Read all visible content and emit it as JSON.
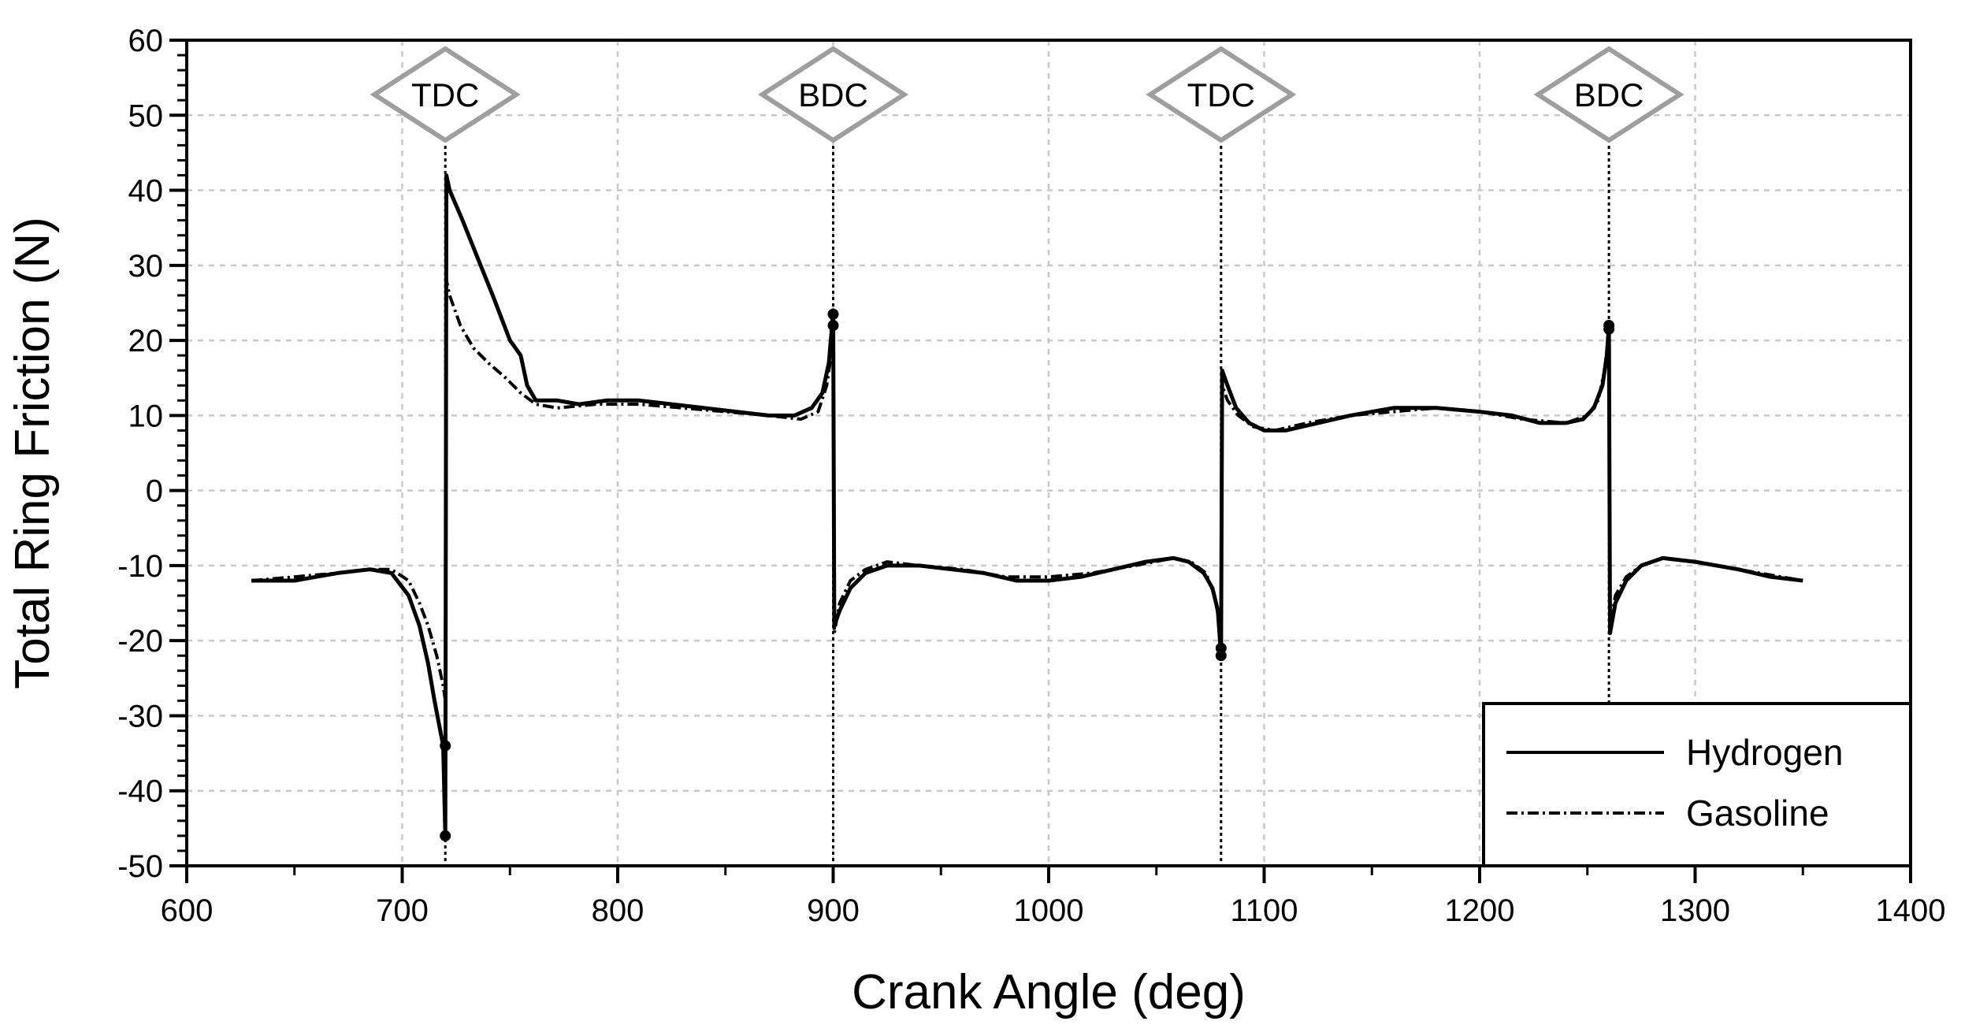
{
  "chart_data": {
    "type": "line",
    "title": "",
    "xlabel": "Crank Angle (deg)",
    "ylabel": "Total Ring Friction (N)",
    "xlim": [
      600,
      1400
    ],
    "ylim": [
      -50,
      60
    ],
    "xticks": [
      600,
      700,
      800,
      900,
      1000,
      1100,
      1200,
      1300,
      1400
    ],
    "yticks": [
      60,
      50,
      40,
      30,
      20,
      10,
      0,
      -10,
      -20,
      -30,
      -40,
      -50
    ],
    "grid": true,
    "legend_position": "bottom-right",
    "markers": [
      {
        "label": "TDC",
        "x": 720
      },
      {
        "label": "BDC",
        "x": 900
      },
      {
        "label": "TDC",
        "x": 1080
      },
      {
        "label": "BDC",
        "x": 1260
      }
    ],
    "series": [
      {
        "name": "Hydrogen",
        "style": "solid",
        "points": [
          [
            630,
            -12
          ],
          [
            650,
            -12
          ],
          [
            670,
            -11
          ],
          [
            685,
            -10.5
          ],
          [
            695,
            -11
          ],
          [
            703,
            -14
          ],
          [
            708,
            -18
          ],
          [
            712,
            -23
          ],
          [
            715,
            -28
          ],
          [
            717,
            -31
          ],
          [
            719,
            -34
          ],
          [
            720,
            -46
          ],
          [
            720.5,
            42
          ],
          [
            722,
            40
          ],
          [
            728,
            36
          ],
          [
            735,
            31
          ],
          [
            742,
            26
          ],
          [
            750,
            20
          ],
          [
            755,
            18
          ],
          [
            758,
            14
          ],
          [
            762,
            12
          ],
          [
            772,
            12
          ],
          [
            782,
            11.5
          ],
          [
            795,
            12
          ],
          [
            810,
            12
          ],
          [
            825,
            11.5
          ],
          [
            840,
            11
          ],
          [
            855,
            10.5
          ],
          [
            870,
            10
          ],
          [
            882,
            10
          ],
          [
            890,
            11
          ],
          [
            895,
            13
          ],
          [
            898,
            17
          ],
          [
            899.5,
            22
          ],
          [
            900,
            24
          ],
          [
            900.5,
            -18
          ],
          [
            903,
            -16
          ],
          [
            908,
            -13
          ],
          [
            915,
            -11
          ],
          [
            925,
            -10
          ],
          [
            940,
            -10
          ],
          [
            955,
            -10.5
          ],
          [
            970,
            -11
          ],
          [
            985,
            -12
          ],
          [
            1000,
            -12
          ],
          [
            1015,
            -11.5
          ],
          [
            1030,
            -10.5
          ],
          [
            1045,
            -9.5
          ],
          [
            1058,
            -9
          ],
          [
            1065,
            -9.5
          ],
          [
            1072,
            -11
          ],
          [
            1076,
            -13
          ],
          [
            1078.5,
            -16
          ],
          [
            1080,
            -22
          ],
          [
            1080.5,
            16
          ],
          [
            1083,
            14
          ],
          [
            1087,
            11
          ],
          [
            1093,
            9
          ],
          [
            1100,
            8
          ],
          [
            1110,
            8
          ],
          [
            1125,
            9
          ],
          [
            1140,
            10
          ],
          [
            1160,
            11
          ],
          [
            1180,
            11
          ],
          [
            1200,
            10.5
          ],
          [
            1215,
            10
          ],
          [
            1228,
            9
          ],
          [
            1240,
            9
          ],
          [
            1248,
            9.5
          ],
          [
            1253,
            11
          ],
          [
            1257,
            14
          ],
          [
            1259,
            18
          ],
          [
            1260,
            22
          ],
          [
            1260.5,
            -19
          ],
          [
            1263,
            -15
          ],
          [
            1268,
            -12
          ],
          [
            1275,
            -10
          ],
          [
            1285,
            -9
          ],
          [
            1300,
            -9.5
          ],
          [
            1320,
            -10.5
          ],
          [
            1335,
            -11.5
          ],
          [
            1350,
            -12
          ]
        ]
      },
      {
        "name": "Gasoline",
        "style": "dashdot",
        "points": [
          [
            630,
            -12
          ],
          [
            650,
            -11.5
          ],
          [
            670,
            -11
          ],
          [
            685,
            -10.5
          ],
          [
            695,
            -10.5
          ],
          [
            703,
            -12
          ],
          [
            708,
            -15
          ],
          [
            712,
            -18
          ],
          [
            716,
            -22
          ],
          [
            719,
            -26
          ],
          [
            720,
            -28
          ],
          [
            720.5,
            28
          ],
          [
            722,
            26
          ],
          [
            727,
            22
          ],
          [
            733,
            19
          ],
          [
            740,
            17
          ],
          [
            748,
            15
          ],
          [
            755,
            13
          ],
          [
            762,
            11.5
          ],
          [
            772,
            11
          ],
          [
            790,
            11.5
          ],
          [
            810,
            11.5
          ],
          [
            830,
            11
          ],
          [
            850,
            10.5
          ],
          [
            870,
            10
          ],
          [
            885,
            9.5
          ],
          [
            893,
            10.5
          ],
          [
            897,
            14
          ],
          [
            899,
            18
          ],
          [
            900,
            22
          ],
          [
            900.5,
            -19
          ],
          [
            903,
            -15
          ],
          [
            908,
            -12
          ],
          [
            915,
            -10.5
          ],
          [
            925,
            -9.5
          ],
          [
            940,
            -10
          ],
          [
            960,
            -10.5
          ],
          [
            980,
            -11.5
          ],
          [
            1000,
            -11.5
          ],
          [
            1020,
            -11
          ],
          [
            1040,
            -10
          ],
          [
            1058,
            -9
          ],
          [
            1066,
            -9.5
          ],
          [
            1073,
            -11
          ],
          [
            1077,
            -14
          ],
          [
            1079.5,
            -18
          ],
          [
            1080,
            -21
          ],
          [
            1080.5,
            14
          ],
          [
            1083,
            12
          ],
          [
            1088,
            10
          ],
          [
            1095,
            8.5
          ],
          [
            1105,
            8
          ],
          [
            1120,
            9
          ],
          [
            1140,
            10
          ],
          [
            1160,
            10.5
          ],
          [
            1180,
            11
          ],
          [
            1200,
            10.5
          ],
          [
            1220,
            9.5
          ],
          [
            1240,
            9
          ],
          [
            1250,
            10
          ],
          [
            1255,
            12
          ],
          [
            1258,
            16
          ],
          [
            1260,
            21
          ],
          [
            1260.5,
            -18
          ],
          [
            1263,
            -14
          ],
          [
            1268,
            -11.5
          ],
          [
            1275,
            -10
          ],
          [
            1285,
            -9
          ],
          [
            1300,
            -9.5
          ],
          [
            1320,
            -10.5
          ],
          [
            1340,
            -11.5
          ],
          [
            1350,
            -12
          ]
        ]
      }
    ],
    "highlight_points": [
      [
        720,
        -34
      ],
      [
        720,
        -46
      ],
      [
        900,
        22
      ],
      [
        900,
        23.5
      ],
      [
        1080,
        -21
      ],
      [
        1080,
        -22
      ],
      [
        1260,
        21.5
      ],
      [
        1260,
        22
      ]
    ]
  }
}
